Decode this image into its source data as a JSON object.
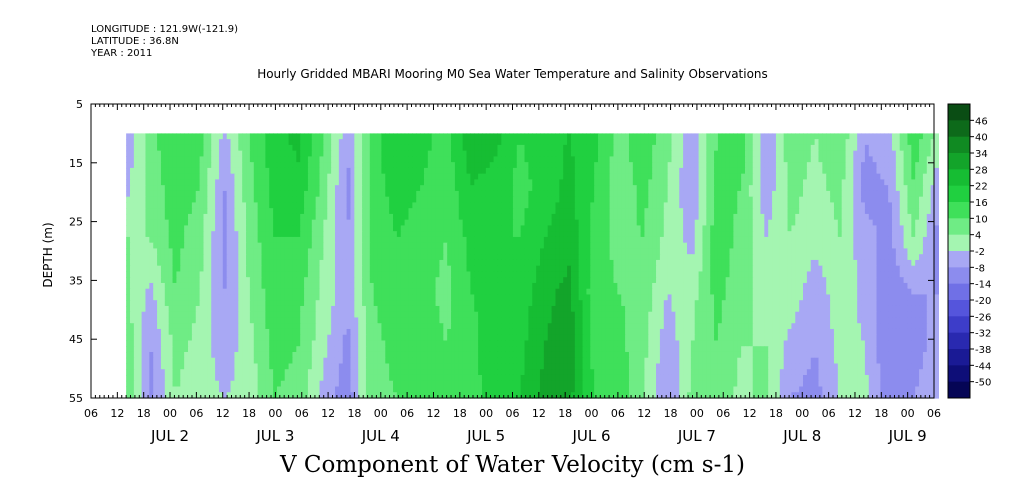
{
  "header": {
    "longitude": "LONGITUDE : 121.9W(-121.9)",
    "latitude": "LATITUDE : 36.8N",
    "year": "YEAR : 2011",
    "title": "Hourly Gridded MBARI Mooring M0 Sea Water Temperature and Salinity Observations"
  },
  "chart_data": {
    "type": "heatmap",
    "title": "Hourly Gridded MBARI Mooring M0 Sea Water Temperature and Salinity Observations",
    "xlabel": "",
    "ylabel": "DEPTH (m)",
    "variable_label": "V Component of Water Velocity (cm s-1)",
    "y_ticks": [
      5,
      15,
      25,
      35,
      45,
      55
    ],
    "ylim": [
      55,
      5
    ],
    "data_depth_range": [
      10,
      55
    ],
    "x_hour_ticks": [
      "06",
      "12",
      "18",
      "00",
      "06",
      "12",
      "18",
      "00",
      "06",
      "12",
      "18",
      "00",
      "06",
      "12",
      "18",
      "00",
      "06",
      "12",
      "18",
      "00",
      "06",
      "12",
      "18",
      "00",
      "06",
      "12",
      "18",
      "00",
      "06",
      "12",
      "18",
      "00",
      "06"
    ],
    "x_day_labels": [
      "JUL  2",
      "JUL  3",
      "JUL  4",
      "JUL  5",
      "JUL  6",
      "JUL  7",
      "JUL  8",
      "JUL  9"
    ],
    "data_start": "JUL 1 14:00",
    "data_end": "JUL 9 07:00",
    "colorbar_levels": [
      "46",
      "40",
      "34",
      "28",
      "22",
      "16",
      "10",
      "4",
      "-2",
      "-8",
      "-14",
      "-20",
      "-26",
      "-32",
      "-38",
      "-44",
      "-50"
    ],
    "colorbar_colors": [
      "#0a4d14",
      "#0d6a1a",
      "#108a22",
      "#13a42a",
      "#16bd33",
      "#20d040",
      "#3fe05a",
      "#6fec85",
      "#a4f5b1",
      "#a8a8f4",
      "#8c8cee",
      "#7070e6",
      "#5555dc",
      "#3d3dc9",
      "#2929b0",
      "#1a1a95",
      "#0e0e78",
      "#050555"
    ],
    "field_v_cm_s": [
      [
        -6,
        8,
        16,
        12,
        -4,
        10,
        20,
        24,
        10,
        -6,
        12,
        22,
        18,
        14,
        26,
        24,
        16,
        20,
        22,
        18,
        8,
        14,
        6,
        -6,
        10,
        14,
        -8,
        8,
        4,
        10,
        -8,
        -4,
        14,
        2
      ],
      [
        -4,
        6,
        14,
        10,
        -8,
        8,
        18,
        20,
        8,
        -10,
        14,
        18,
        16,
        12,
        22,
        20,
        14,
        18,
        24,
        16,
        6,
        12,
        4,
        -8,
        12,
        10,
        -6,
        6,
        2,
        6,
        -10,
        -8,
        10,
        -6
      ],
      [
        4,
        4,
        12,
        6,
        -10,
        6,
        16,
        16,
        4,
        -8,
        12,
        16,
        14,
        10,
        18,
        16,
        16,
        22,
        26,
        14,
        8,
        10,
        2,
        -4,
        14,
        8,
        -2,
        4,
        0,
        4,
        -6,
        -10,
        4,
        -10
      ],
      [
        6,
        -4,
        10,
        4,
        -8,
        4,
        14,
        12,
        2,
        -6,
        10,
        14,
        12,
        8,
        16,
        18,
        18,
        26,
        30,
        12,
        10,
        8,
        -2,
        2,
        12,
        6,
        2,
        2,
        -6,
        2,
        -4,
        -12,
        -8,
        -8
      ],
      [
        8,
        -8,
        6,
        2,
        -6,
        2,
        12,
        10,
        0,
        -10,
        8,
        12,
        14,
        10,
        14,
        20,
        20,
        28,
        32,
        14,
        12,
        6,
        -6,
        4,
        10,
        4,
        4,
        -4,
        -8,
        0,
        -2,
        -14,
        -10,
        -6
      ],
      [
        10,
        -10,
        4,
        0,
        -2,
        0,
        10,
        8,
        -4,
        -12,
        8,
        10,
        16,
        12,
        12,
        22,
        22,
        30,
        30,
        16,
        14,
        4,
        -8,
        6,
        8,
        2,
        6,
        -8,
        -10,
        -2,
        0,
        -12,
        -8,
        -4
      ]
    ]
  },
  "axes": {
    "xlabel": "V Component of Water Velocity (cm s-1)"
  }
}
